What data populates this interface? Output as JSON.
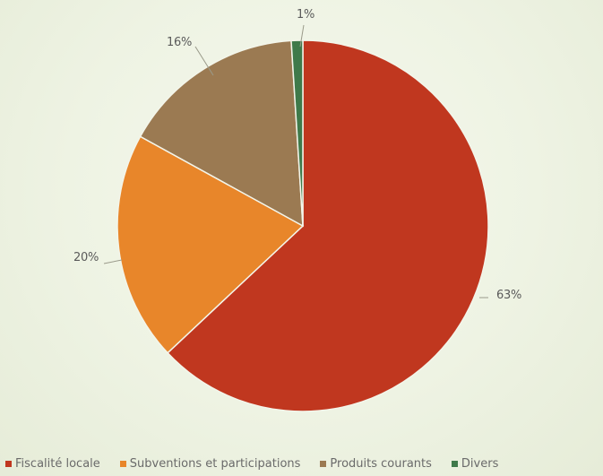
{
  "chart_data": {
    "type": "pie",
    "title": "",
    "series": [
      {
        "values": [
          63,
          20,
          16,
          1
        ]
      }
    ],
    "categories": [
      "Fiscalité locale",
      "Subventions et participations",
      "Produits courants",
      "Divers"
    ],
    "slices": [
      {
        "label": "Fiscalité locale",
        "value": 63,
        "display": "63%",
        "color": "#c0371f"
      },
      {
        "label": "Subventions et participations",
        "value": 20,
        "display": "20%",
        "color": "#e8862a"
      },
      {
        "label": "Produits courants",
        "value": 16,
        "display": "16%",
        "color": "#9b7a52"
      },
      {
        "label": "Divers",
        "value": 1,
        "display": "1%",
        "color": "#3f7a4a"
      }
    ],
    "start_angle": "12 o'clock",
    "direction": "clockwise",
    "legend_position": "bottom",
    "data_labels": "outside with leader lines"
  }
}
